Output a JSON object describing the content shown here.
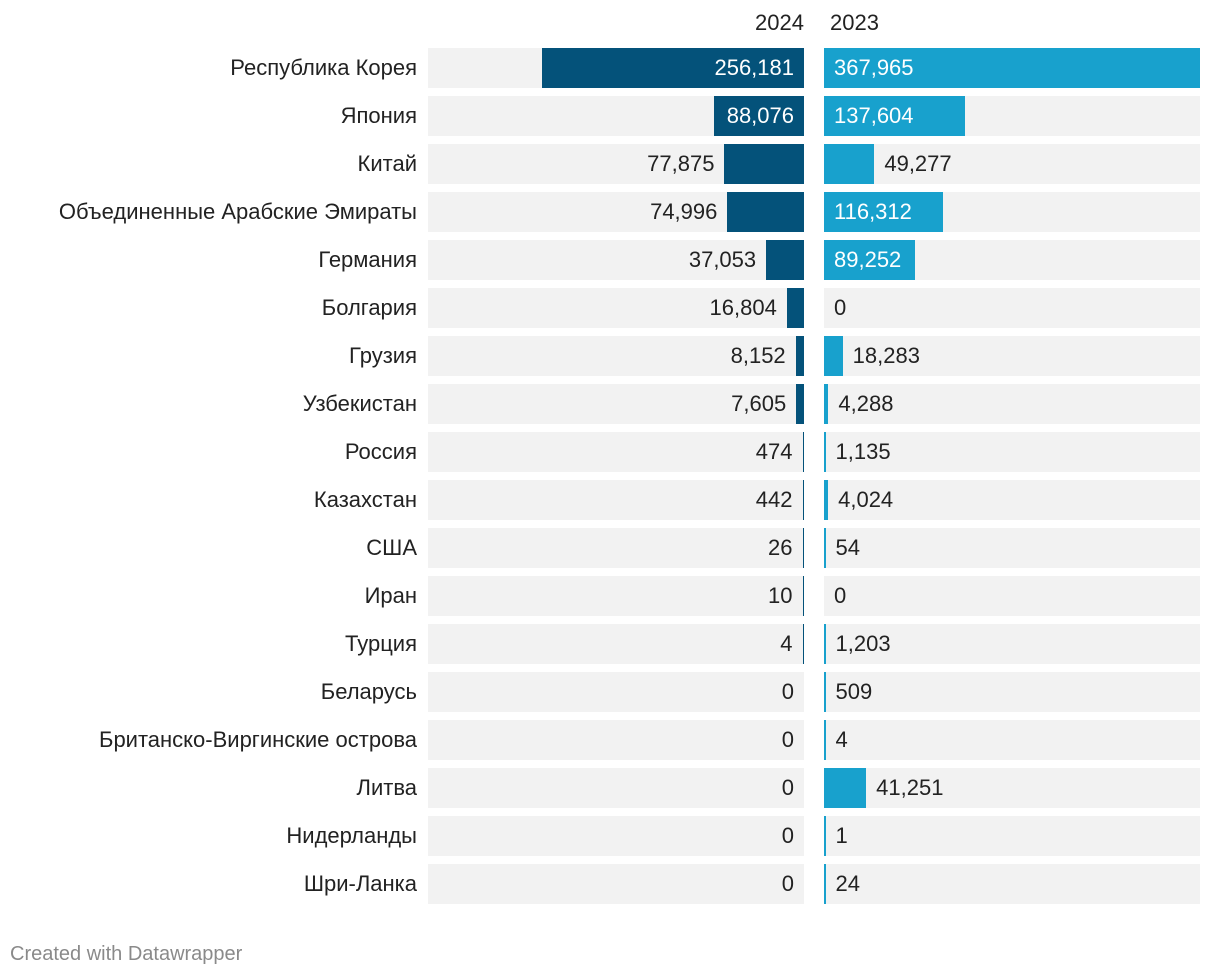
{
  "chart_data": {
    "type": "bar",
    "orientation": "horizontal",
    "layout": "split-bars",
    "series": [
      {
        "name": "2024",
        "color": "#04527a",
        "values": [
          256181,
          88076,
          77875,
          74996,
          37053,
          16804,
          8152,
          7605,
          474,
          442,
          26,
          10,
          4,
          0,
          0,
          0,
          0,
          0
        ],
        "labels": [
          "256,181",
          "88,076",
          "77,875",
          "74,996",
          "37,053",
          "16,804",
          "8,152",
          "7,605",
          "474",
          "442",
          "26",
          "10",
          "4",
          "0",
          "0",
          "0",
          "0",
          "0"
        ]
      },
      {
        "name": "2023",
        "color": "#18a1cd",
        "values": [
          367965,
          137604,
          49277,
          116312,
          89252,
          0,
          18283,
          4288,
          1135,
          4024,
          54,
          0,
          1203,
          509,
          4,
          41251,
          1,
          24
        ],
        "labels": [
          "367,965",
          "137,604",
          "49,277",
          "116,312",
          "89,252",
          "0",
          "18,283",
          "4,288",
          "1,135",
          "4,024",
          "54",
          "0",
          "1,203",
          "509",
          "4",
          "41,251",
          "1",
          "24"
        ]
      }
    ],
    "categories": [
      "Республика Корея",
      "Япония",
      "Китай",
      "Объединенные Арабские Эмираты",
      "Германия",
      "Болгария",
      "Грузия",
      "Узбекистан",
      "Россия",
      "Казахстан",
      "США",
      "Иран",
      "Турция",
      "Беларусь",
      "Британско-Виргинские острова",
      "Литва",
      "Нидерланды",
      "Шри-Ланка"
    ],
    "xlim": [
      0,
      367965
    ],
    "track_color": "#f2f2f2"
  },
  "footer": {
    "credit": "Created with Datawrapper"
  }
}
